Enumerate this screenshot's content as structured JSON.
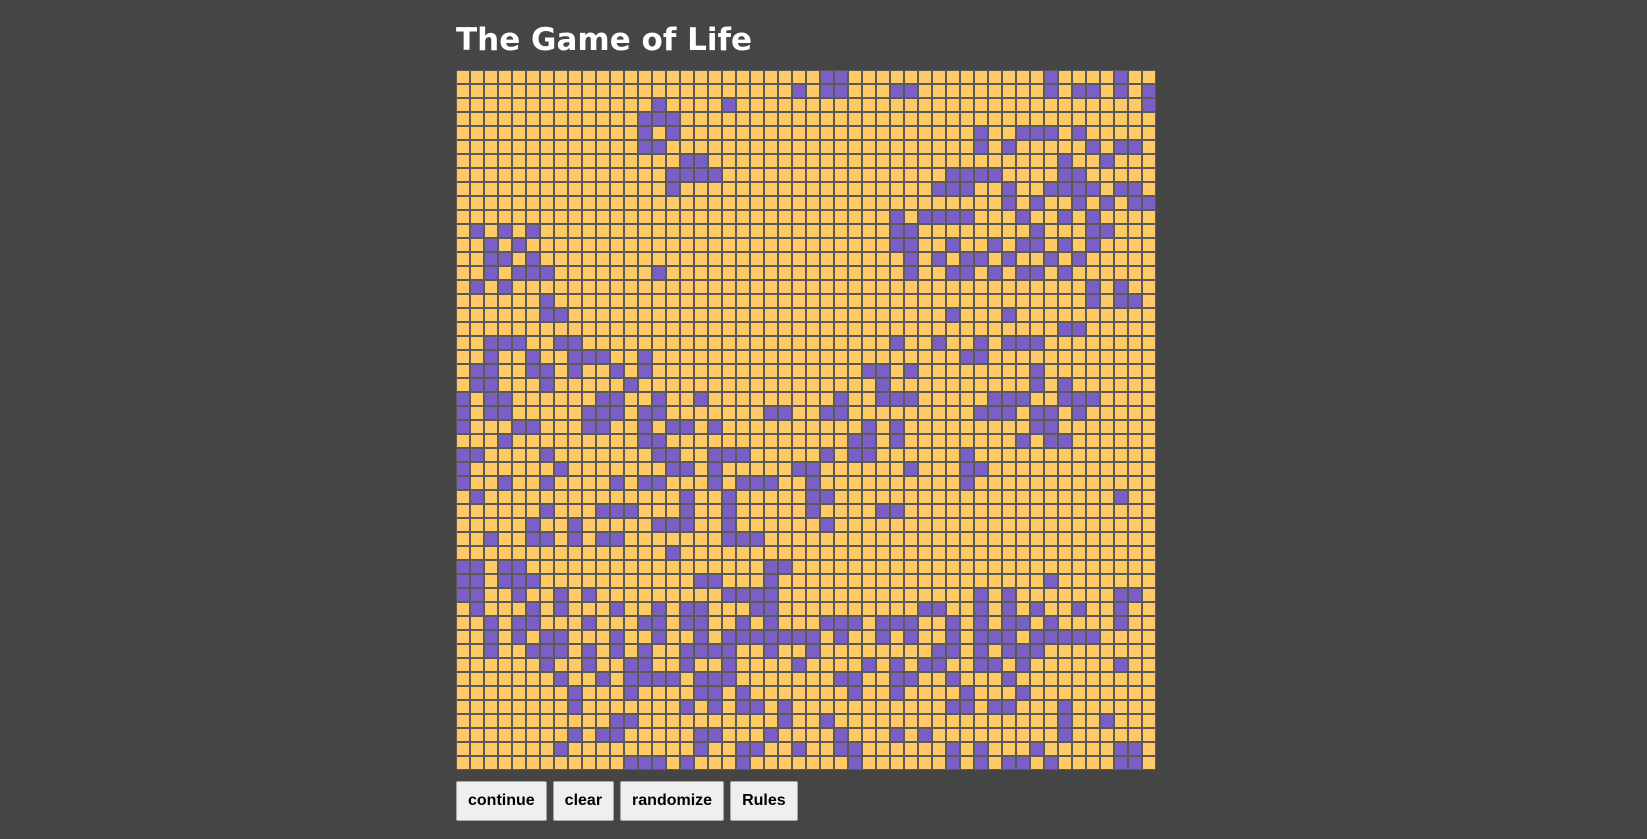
{
  "header": {
    "title": "The Game of Life"
  },
  "board": {
    "rows": 50,
    "cols": 50,
    "colors": {
      "alive": "#7b5ec6",
      "dead": "#ffc965",
      "grid": "#5a5a5a",
      "background": "#454545"
    },
    "cells": [
      "..........................##..............#....#..",
      "........................#.##...##.........#.##.#.#",
      "..............#....#.............................#",
      ".............###...................................",
      ".............#.#.....................#..###.#.....",
      ".............##......................#.#.....#.##.",
      "................##.........................#..#...",
      "...............####................####....##.....",
      "...............#..................###..#..####.##.",
      ".......................................#.#..#.#.##",
      "...............................#.####...#..#.#...",
      ".#.#.#.........................##........#...##...",
      "..#.#..........................##..#..#.##.#.#....",
      "..##.#..........................#.#.##.#..#.#.....",
      "..#.###.......#.................#..##.#.##.#......",
      ".#.#.........................................#.#..",
      "......#......................................#.##.",
      "......##...........................#...#.........",
      "...........................................##.....",
      "..###..##......................#..#..#.###.......",
      "..#..#..###..#......................##...........",
      ".##..##.#..#.#...............##.#........#........",
      ".##...#.....#.................#..........#.#......",
      "#.##......##..#..#.........#..###.....###..###....",
      "#.##.....###.##.......##..##.........###.##.#.....",
      "#...##...##..#.##.#..........#.#.........##.......",
      "...#.........##.............##.#........#.##......",
      "##....#.......##..###.....#.##......#.............",
      "#......#.......##.#.....##......#...##............",
      "#..#..#....#.##...#.###..#..........#.............",
      ".#..............#..#.....##....................#..",
      "......#...###...#..#.....#....##..................",
      ".....#..#.....###..#......#.......................",
      "..#..##.#.##.......###............................",
      "...............#..................................",
      "##.##.................##.........................",
      "##.###...........##...#...................#......",
      "##..#..#.#.........####..............#.#.......##.",
      ".#...#.#...#..#.##...##..........##..#.#.#..#..#..",
      "..#.##...#...##.##..#.#...###.###..#.#.##.#....#..",
      "..#.#.##...#..#..#.#######.#..#.#..#.###.#####....",
      "..#..###.#.#.#..####..#..#........##.#.###.......",
      "......#..#..##..#..#....#....#.#.##..##.#......#..",
      ".......#..#.####.###.......##..##..#...#.........",
      "........#...#....##.#.......#..#....#...#........",
      "........#.......#.#.##.#...........##.##...#.....",
      "...........##..........#..#................#..#..",
      "........#.##.....##...#....#...#.#.........#.....",
      ".......#.........#..##..#..##......#.#...#.....##.",
      "............###.#...#.......#......#.#.##.#....##."
    ]
  },
  "controls": {
    "continue_label": "continue",
    "clear_label": "clear",
    "randomize_label": "randomize",
    "rules_label": "Rules"
  }
}
